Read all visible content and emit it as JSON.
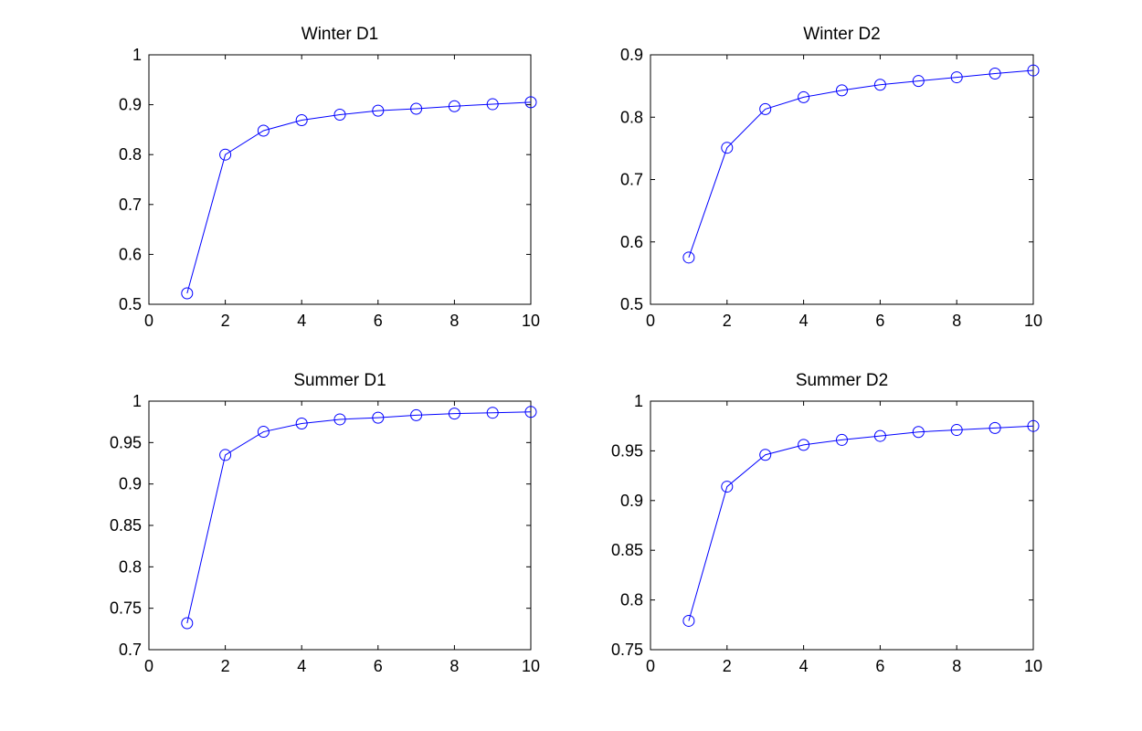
{
  "chart_data": [
    {
      "type": "line",
      "title": "Winter D1",
      "xlim": [
        0,
        10
      ],
      "ylim": [
        0.5,
        1
      ],
      "xticks": [
        "0",
        "2",
        "4",
        "6",
        "8",
        "10"
      ],
      "yticks": [
        "0.5",
        "0.6",
        "0.7",
        "0.8",
        "0.9",
        "1"
      ],
      "x": [
        1,
        2,
        3,
        4,
        5,
        6,
        7,
        8,
        9,
        10
      ],
      "series": [
        {
          "values": [
            0.522,
            0.8,
            0.848,
            0.869,
            0.88,
            0.888,
            0.892,
            0.897,
            0.901,
            0.905
          ],
          "color": "#0000ff",
          "marker": "circle"
        }
      ],
      "grid": false,
      "legend": "none"
    },
    {
      "type": "line",
      "title": "Winter D2",
      "xlim": [
        0,
        10
      ],
      "ylim": [
        0.5,
        0.9
      ],
      "xticks": [
        "0",
        "2",
        "4",
        "6",
        "8",
        "10"
      ],
      "yticks": [
        "0.5",
        "0.6",
        "0.7",
        "0.8",
        "0.9"
      ],
      "x": [
        1,
        2,
        3,
        4,
        5,
        6,
        7,
        8,
        9,
        10
      ],
      "series": [
        {
          "values": [
            0.575,
            0.751,
            0.813,
            0.832,
            0.843,
            0.852,
            0.858,
            0.864,
            0.87,
            0.875
          ],
          "color": "#0000ff",
          "marker": "circle"
        }
      ],
      "grid": false,
      "legend": "none"
    },
    {
      "type": "line",
      "title": "Summer D1",
      "xlim": [
        0,
        10
      ],
      "ylim": [
        0.7,
        1
      ],
      "xticks": [
        "0",
        "2",
        "4",
        "6",
        "8",
        "10"
      ],
      "yticks": [
        "0.7",
        "0.75",
        "0.8",
        "0.85",
        "0.9",
        "0.95",
        "1"
      ],
      "x": [
        1,
        2,
        3,
        4,
        5,
        6,
        7,
        8,
        9,
        10
      ],
      "series": [
        {
          "values": [
            0.732,
            0.935,
            0.963,
            0.973,
            0.978,
            0.98,
            0.983,
            0.985,
            0.986,
            0.987
          ],
          "color": "#0000ff",
          "marker": "circle"
        }
      ],
      "grid": false,
      "legend": "none"
    },
    {
      "type": "line",
      "title": "Summer D2",
      "xlim": [
        0,
        10
      ],
      "ylim": [
        0.75,
        1
      ],
      "xticks": [
        "0",
        "2",
        "4",
        "6",
        "8",
        "10"
      ],
      "yticks": [
        "0.75",
        "0.8",
        "0.85",
        "0.9",
        "0.95",
        "1"
      ],
      "x": [
        1,
        2,
        3,
        4,
        5,
        6,
        7,
        8,
        9,
        10
      ],
      "series": [
        {
          "values": [
            0.779,
            0.914,
            0.946,
            0.956,
            0.961,
            0.965,
            0.969,
            0.971,
            0.973,
            0.975
          ],
          "color": "#0000ff",
          "marker": "circle"
        }
      ],
      "grid": false,
      "legend": "none"
    }
  ]
}
